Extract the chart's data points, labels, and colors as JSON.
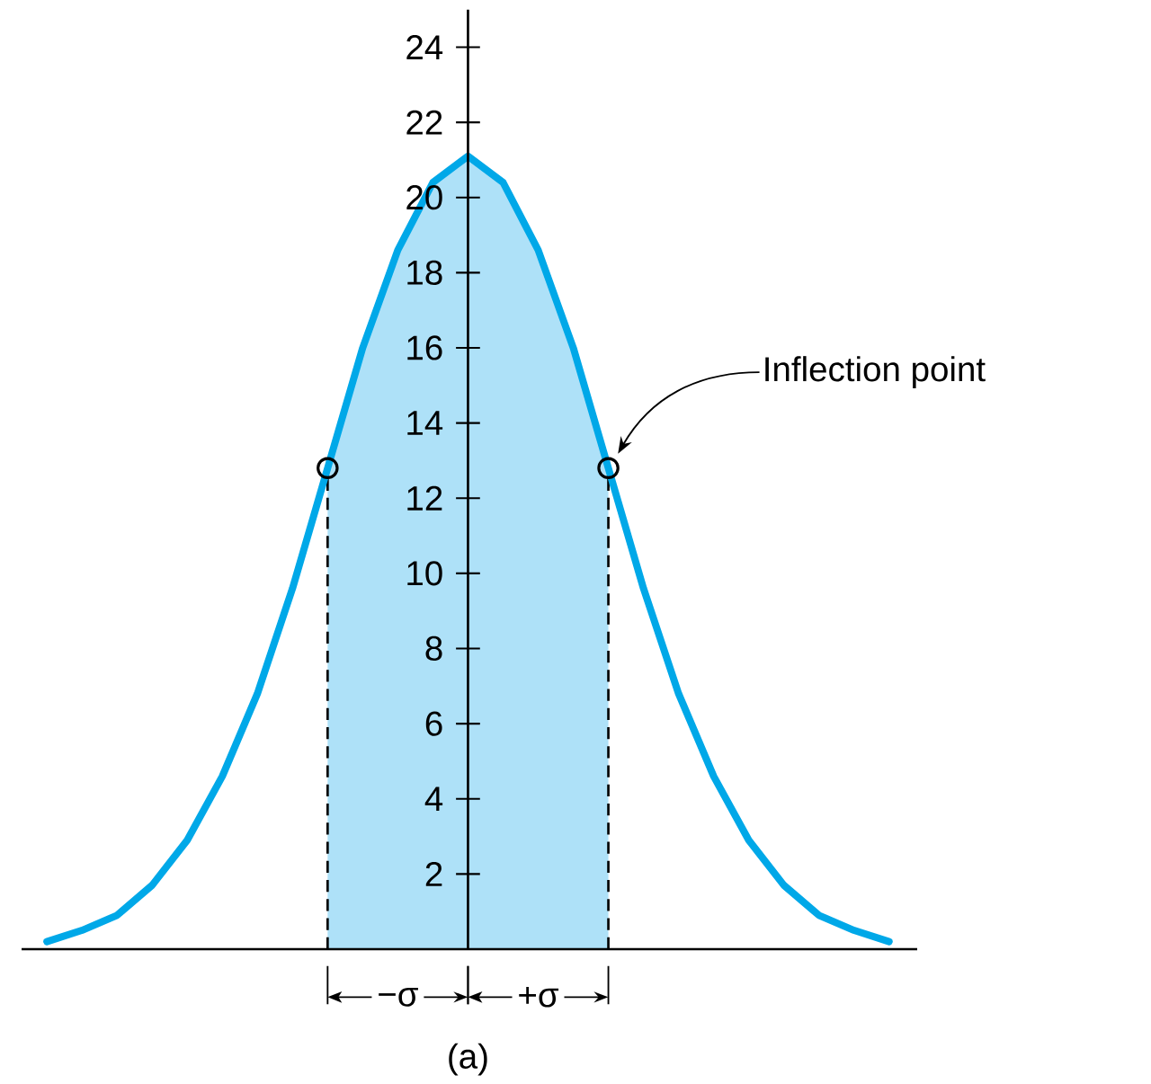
{
  "chart_data": {
    "type": "line",
    "categories": [
      null,
      null,
      null,
      null,
      null,
      null,
      null,
      null,
      null,
      null,
      null,
      null,
      null,
      null,
      null,
      null,
      null,
      null,
      null,
      null,
      null,
      null,
      null,
      null,
      null
    ],
    "ylim": [
      0,
      25
    ],
    "yticks": [
      2,
      4,
      6,
      8,
      10,
      12,
      14,
      16,
      18,
      20,
      22,
      24
    ],
    "tick_labels": "y",
    "series": [
      {
        "type": "area",
        "color": "#aee1f8",
        "line_style": "dashed",
        "values": [
          null,
          null,
          null,
          null,
          null,
          null,
          null,
          null,
          12.8,
          16.0,
          18.6,
          20.4,
          21.1,
          20.4,
          18.6,
          16.0,
          12.8,
          null,
          null,
          null,
          null,
          null,
          null,
          null,
          null
        ]
      },
      {
        "color": "#00a8e8",
        "values": [
          0.2,
          0.5,
          0.9,
          1.7,
          2.9,
          4.6,
          6.8,
          9.6,
          12.8,
          16.0,
          18.6,
          20.4,
          21.1,
          20.4,
          18.6,
          16.0,
          12.8,
          9.6,
          6.8,
          4.6,
          2.9,
          1.7,
          0.9,
          0.5,
          0.2
        ]
      },
      {
        "type": "scatter",
        "marker": "circle",
        "color": "#000000",
        "values": [
          null,
          null,
          null,
          null,
          null,
          null,
          null,
          null,
          12.8,
          null,
          null,
          null,
          null,
          null,
          null,
          null,
          12.8,
          null,
          null,
          null,
          null,
          null,
          null,
          null,
          null
        ]
      }
    ],
    "annotations": [
      "−σ",
      "+σ",
      "Inflection point",
      "(a)"
    ]
  }
}
